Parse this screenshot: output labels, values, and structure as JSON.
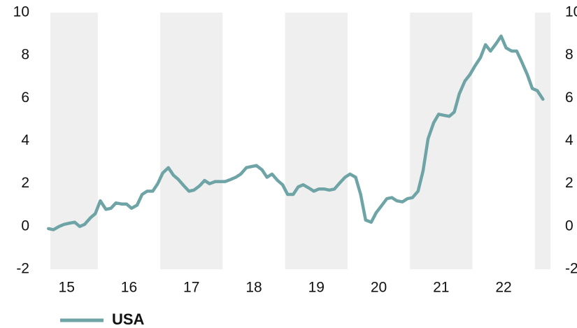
{
  "chart_data": {
    "type": "line",
    "x": [
      15.21,
      15.29,
      15.38,
      15.46,
      15.54,
      15.63,
      15.71,
      15.79,
      15.88,
      15.96,
      16.04,
      16.13,
      16.21,
      16.29,
      16.38,
      16.46,
      16.54,
      16.63,
      16.71,
      16.79,
      16.88,
      16.96,
      17.04,
      17.13,
      17.21,
      17.29,
      17.38,
      17.46,
      17.54,
      17.63,
      17.71,
      17.79,
      17.88,
      17.96,
      18.04,
      18.13,
      18.21,
      18.29,
      18.38,
      18.46,
      18.54,
      18.63,
      18.71,
      18.79,
      18.88,
      18.96,
      19.04,
      19.13,
      19.21,
      19.29,
      19.38,
      19.46,
      19.54,
      19.63,
      19.71,
      19.79,
      19.88,
      19.96,
      20.04,
      20.13,
      20.21,
      20.29,
      20.38,
      20.46,
      20.54,
      20.63,
      20.71,
      20.79,
      20.88,
      20.96,
      21.04,
      21.13,
      21.21,
      21.29,
      21.38,
      21.46,
      21.54,
      21.63,
      21.71,
      21.79,
      21.88,
      21.96,
      22.04,
      22.13,
      22.21,
      22.29,
      22.38,
      22.46,
      22.54,
      22.63,
      22.71,
      22.79,
      22.88,
      22.96,
      23.04,
      23.13
    ],
    "series": [
      {
        "name": "USA",
        "color": "#6fa4a6",
        "values": [
          -0.1,
          -0.15,
          0.0,
          0.1,
          0.15,
          0.2,
          0.0,
          0.1,
          0.4,
          0.6,
          1.2,
          0.8,
          0.85,
          1.1,
          1.05,
          1.05,
          0.85,
          1.0,
          1.5,
          1.65,
          1.65,
          2.0,
          2.5,
          2.75,
          2.4,
          2.2,
          1.9,
          1.65,
          1.7,
          1.9,
          2.15,
          2.0,
          2.1,
          2.1,
          2.1,
          2.2,
          2.3,
          2.45,
          2.75,
          2.8,
          2.85,
          2.65,
          2.3,
          2.45,
          2.15,
          1.95,
          1.5,
          1.5,
          1.85,
          1.95,
          1.8,
          1.65,
          1.75,
          1.75,
          1.7,
          1.75,
          2.05,
          2.3,
          2.45,
          2.3,
          1.5,
          0.3,
          0.2,
          0.65,
          0.95,
          1.3,
          1.35,
          1.2,
          1.15,
          1.3,
          1.35,
          1.65,
          2.6,
          4.1,
          4.85,
          5.25,
          5.2,
          5.15,
          5.35,
          6.2,
          6.8,
          7.1,
          7.5,
          7.9,
          8.5,
          8.2,
          8.55,
          8.9,
          8.35,
          8.2,
          8.2,
          7.7,
          7.1,
          6.45,
          6.35,
          5.95
        ]
      }
    ],
    "xlim": [
      15.24,
      23.25
    ],
    "xticks": [
      {
        "value": 15.5,
        "label": "15"
      },
      {
        "value": 16.5,
        "label": "16"
      },
      {
        "value": 17.5,
        "label": "17"
      },
      {
        "value": 18.5,
        "label": "18"
      },
      {
        "value": 19.5,
        "label": "19"
      },
      {
        "value": 20.5,
        "label": "20"
      },
      {
        "value": 21.5,
        "label": "21"
      },
      {
        "value": 22.5,
        "label": "22"
      }
    ],
    "ylim": [
      -2,
      10
    ],
    "yticks": [
      -2,
      0,
      2,
      4,
      6,
      8,
      10
    ],
    "y2lim": [
      -2,
      10
    ],
    "y2ticks": [
      -2,
      0,
      2,
      4,
      6,
      8,
      10
    ],
    "shaded": [
      [
        15,
        16
      ],
      [
        17,
        18
      ],
      [
        19,
        20
      ],
      [
        21,
        22
      ],
      [
        23,
        24
      ]
    ],
    "shade_color": "#efefef",
    "legend": "bottom-left"
  }
}
